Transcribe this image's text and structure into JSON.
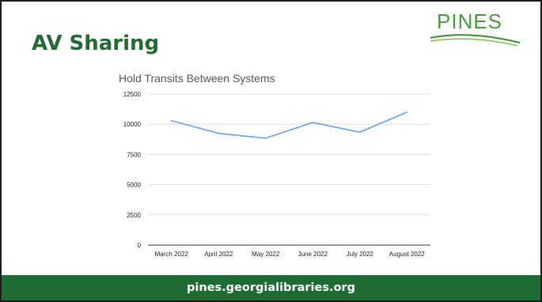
{
  "slide": {
    "title": "AV Sharing",
    "logo_text": "PINES",
    "footer_url": "pines.georgialibraries.org"
  },
  "colors": {
    "title": "#1f6b32",
    "footer_bg": "#1e6b33",
    "line": "#6a9ff0",
    "logo": "#4a9a3e"
  },
  "chart_data": {
    "type": "line",
    "title": "Hold Transits Between Systems",
    "xlabel": "",
    "ylabel": "",
    "categories": [
      "March 2022",
      "April 2022",
      "May 2022",
      "June 2022",
      "July 2022",
      "August 2022"
    ],
    "series": [
      {
        "values": [
          10300,
          9250,
          8850,
          10150,
          9350,
          11000
        ]
      }
    ],
    "ylim": [
      0,
      12500
    ],
    "yticks": [
      0,
      2500,
      5000,
      7500,
      10000,
      12500
    ],
    "grid": true,
    "legend": "none"
  }
}
